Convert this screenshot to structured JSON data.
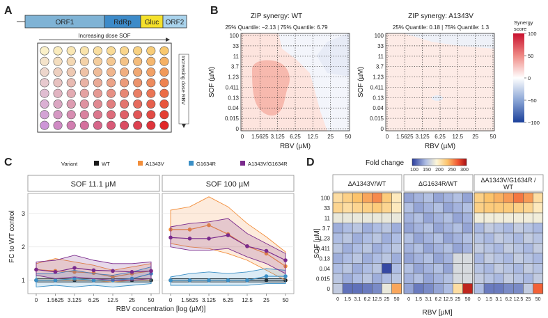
{
  "panels": {
    "A": {
      "label": "A",
      "construct": [
        "ORF1",
        "RdRp",
        "Gluc",
        "ORF2"
      ],
      "sof_dose_label": "Increasing dose SOF",
      "rbv_dose_label": "Increasing dose RBV",
      "plate": {
        "rows": 8,
        "cols": 10
      }
    },
    "B": {
      "label": "B",
      "wt": {
        "title": "ZIP synergy: WT",
        "quantiles": "25% Quantile: −2.13 | 75% Quantile: 6.79"
      },
      "mut": {
        "title": "ZIP synergy: A1343V",
        "quantiles": "25% Quantile: 0.18 | 75% Quantile: 1.3"
      },
      "xlabel": "RBV (µM)",
      "ylabel": "SOF (µM)",
      "xticks": [
        "0",
        "1.5625",
        "3.125",
        "6.25",
        "12.5",
        "25",
        "50"
      ],
      "yticks": [
        "0",
        "0.015",
        "0.04",
        "0.13",
        "0.411",
        "1.23",
        "3.7",
        "11",
        "33",
        "100"
      ],
      "colorbar": {
        "title_line1": "Synergy",
        "title_line2": "score",
        "ticks": [
          "100",
          "50",
          "0",
          "−50",
          "−100"
        ]
      }
    },
    "C": {
      "label": "C",
      "legend_title": "Variant",
      "legend": [
        {
          "name": "WT",
          "color": "#1a1a1a"
        },
        {
          "name": "A1343V",
          "color": "#f28e3b"
        },
        {
          "name": "G1634R",
          "color": "#3a8fc6"
        },
        {
          "name": "A1343V/G1634R",
          "color": "#7a2a8c"
        }
      ],
      "facet1": "SOF 11.1 µM",
      "facet2": "SOF 100 µM",
      "ylabel": "FC to WT control",
      "xlabel": "RBV concentration [log (µM)]",
      "xticks": [
        "0",
        "1.5625",
        "3.125",
        "6.25",
        "12.5",
        "25",
        "50"
      ],
      "yticks": [
        "1",
        "2",
        "3"
      ]
    },
    "D": {
      "label": "D",
      "colorbar_title": "Fold change",
      "colorbar_ticks": [
        "100",
        "150",
        "200",
        "250",
        "300"
      ],
      "facet1": "ΔA1343V/WT",
      "facet2": "ΔG1634R/WT",
      "facet3_line1": "ΔA1343V/G1634R /",
      "facet3_line2": "WT",
      "ylabel": "SOF [µM]",
      "xlabel": "RBV [µM]",
      "yticks": [
        "100",
        "33",
        "11",
        "3.7",
        "1.23",
        "0.411",
        "0.13",
        "0.04",
        "0.015",
        "0"
      ],
      "xticks": [
        "0",
        "1.5",
        "3.1",
        "6.2",
        "12.5",
        "25",
        "50"
      ]
    }
  },
  "chart_data": [
    {
      "type": "line",
      "title": "SOF 11.1 µM",
      "xlabel": "RBV concentration [log (µM)]",
      "ylabel": "FC to WT control",
      "categories": [
        "0",
        "1.5625",
        "3.125",
        "6.25",
        "12.5",
        "25",
        "50"
      ],
      "ylim": [
        0.6,
        3.6
      ],
      "series": [
        {
          "name": "WT",
          "values": [
            1.0,
            1.0,
            1.0,
            1.0,
            1.0,
            1.0,
            1.0
          ],
          "lower": [
            0.95,
            0.95,
            0.95,
            0.95,
            0.95,
            0.95,
            0.95
          ],
          "upper": [
            1.05,
            1.05,
            1.05,
            1.05,
            1.05,
            1.05,
            1.05
          ]
        },
        {
          "name": "A1343V",
          "values": [
            1.32,
            1.28,
            1.25,
            1.22,
            1.1,
            1.2,
            1.28
          ],
          "lower": [
            1.0,
            1.0,
            1.0,
            1.0,
            0.95,
            1.0,
            1.0
          ],
          "upper": [
            1.5,
            1.65,
            1.55,
            1.45,
            1.3,
            1.4,
            1.5
          ]
        },
        {
          "name": "G1634R",
          "values": [
            1.0,
            1.0,
            1.05,
            1.0,
            1.0,
            1.05,
            1.2
          ],
          "lower": [
            0.8,
            0.85,
            0.8,
            0.85,
            0.8,
            0.85,
            0.9
          ],
          "upper": [
            1.2,
            1.2,
            1.3,
            1.2,
            1.15,
            1.25,
            1.4
          ]
        },
        {
          "name": "A1343V/G1634R",
          "values": [
            1.32,
            1.25,
            1.37,
            1.3,
            1.28,
            1.25,
            1.28
          ],
          "lower": [
            1.15,
            1.05,
            1.1,
            1.05,
            1.0,
            1.0,
            1.05
          ],
          "upper": [
            1.55,
            1.6,
            1.75,
            1.6,
            1.5,
            1.5,
            1.55
          ]
        }
      ]
    },
    {
      "type": "line",
      "title": "SOF 100 µM",
      "xlabel": "RBV concentration [log (µM)]",
      "ylabel": "FC to WT control",
      "categories": [
        "0",
        "1.5625",
        "3.125",
        "6.25",
        "12.5",
        "25",
        "50"
      ],
      "ylim": [
        0.6,
        3.6
      ],
      "series": [
        {
          "name": "WT",
          "values": [
            1.0,
            1.0,
            1.0,
            1.0,
            1.0,
            1.0,
            1.0
          ],
          "lower": [
            0.95,
            0.95,
            0.95,
            0.95,
            0.95,
            0.95,
            0.95
          ],
          "upper": [
            1.05,
            1.05,
            1.05,
            1.05,
            1.05,
            1.05,
            1.05
          ]
        },
        {
          "name": "A1343V",
          "values": [
            2.52,
            2.52,
            2.65,
            2.38,
            2.02,
            1.8,
            1.42
          ],
          "lower": [
            2.1,
            2.0,
            1.95,
            1.8,
            1.6,
            1.3,
            1.0
          ],
          "upper": [
            3.1,
            3.2,
            3.5,
            3.2,
            2.7,
            2.3,
            1.85
          ]
        },
        {
          "name": "G1634R",
          "values": [
            1.0,
            1.0,
            1.0,
            1.0,
            1.0,
            1.12,
            1.12
          ],
          "lower": [
            0.85,
            0.85,
            0.85,
            0.85,
            0.85,
            0.9,
            0.9
          ],
          "upper": [
            1.1,
            1.2,
            1.25,
            1.2,
            1.25,
            1.35,
            1.3
          ]
        },
        {
          "name": "A1343V/G1634R",
          "values": [
            2.28,
            2.25,
            2.25,
            2.35,
            2.02,
            1.88,
            1.6
          ],
          "lower": [
            2.0,
            1.9,
            1.9,
            1.95,
            1.7,
            1.5,
            1.2
          ],
          "upper": [
            2.6,
            2.7,
            2.75,
            2.85,
            2.4,
            2.1,
            1.8
          ]
        }
      ]
    }
  ]
}
